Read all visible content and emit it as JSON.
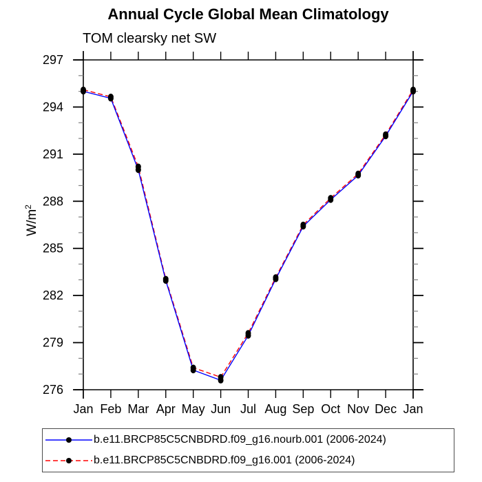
{
  "title": "Annual Cycle Global Mean Climatology",
  "subtitle": "TOM clearsky net SW",
  "ylabel": {
    "base": "W/m",
    "sup": "2"
  },
  "chart_data": {
    "type": "line",
    "x_categories": [
      "Jan",
      "Feb",
      "Mar",
      "Apr",
      "May",
      "Jun",
      "Jul",
      "Aug",
      "Sep",
      "Oct",
      "Nov",
      "Dec",
      "Jan"
    ],
    "xlabel": "",
    "ylabel": "W/m2",
    "ylim": [
      276,
      297
    ],
    "ytick_major": [
      276,
      279,
      282,
      285,
      288,
      291,
      294,
      297
    ],
    "ytick_minor_step": 1,
    "grid": false,
    "legend_position": "bottom",
    "marker": "black-dot",
    "series": [
      {
        "name": "b.e11.BRCP85C5CNBDRD.f09_g16.nourb.001 (2006-2024)",
        "color": "#0000ff",
        "style": "solid",
        "values": [
          295.0,
          294.55,
          290.0,
          282.95,
          277.25,
          276.6,
          279.45,
          283.05,
          286.4,
          288.1,
          289.65,
          292.15,
          295.0
        ]
      },
      {
        "name": "b.e11.BRCP85C5CNBDRD.f09_g16.001 (2006-2024)",
        "color": "#ff0000",
        "style": "dashed",
        "values": [
          295.1,
          294.65,
          290.2,
          283.05,
          277.4,
          276.8,
          279.6,
          283.15,
          286.5,
          288.2,
          289.75,
          292.25,
          295.1
        ]
      }
    ]
  },
  "colors": {
    "axis": "#000000",
    "minor_tick": "#808080",
    "marker": "#000000",
    "background": "#ffffff",
    "legend_border": "#4a4a4a"
  }
}
